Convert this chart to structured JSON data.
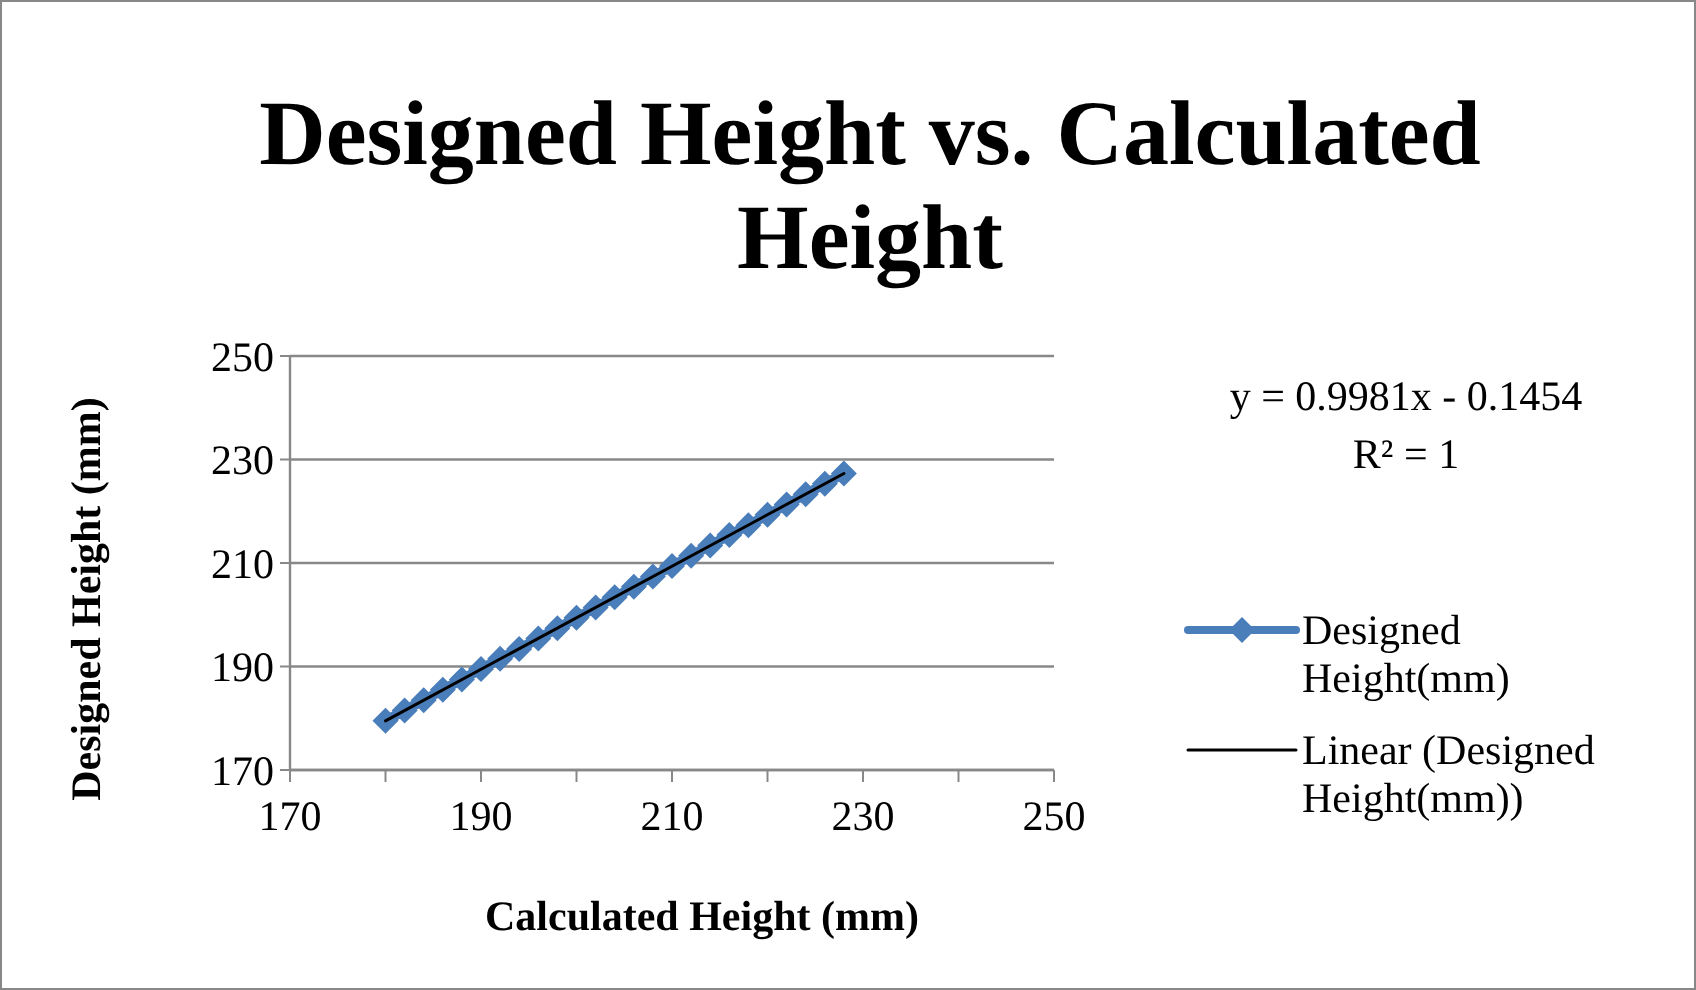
{
  "chart_data": {
    "type": "line",
    "title": "Designed Height vs. Calculated Height",
    "xlabel": "Calculated Height (mm)",
    "ylabel": "Designed Height (mm)",
    "series": [
      {
        "name": "Designed Height(mm)",
        "color": "#4a7ebb",
        "marker": "diamond",
        "x": [
          180,
          182,
          184,
          186,
          188,
          190,
          192,
          194,
          196,
          198,
          200,
          202,
          204,
          206,
          208,
          210,
          212,
          214,
          216,
          218,
          220,
          222,
          224,
          226,
          228
        ],
        "values": [
          179.5,
          181.5,
          183.5,
          185.5,
          187.5,
          189.5,
          191.5,
          193.4,
          195.4,
          197.4,
          199.4,
          201.4,
          203.4,
          205.4,
          207.4,
          209.4,
          211.4,
          213.4,
          215.4,
          217.3,
          219.3,
          221.3,
          223.3,
          225.3,
          227.3
        ]
      },
      {
        "name": "Linear (Designed Height(mm))",
        "type": "line",
        "color": "#000000",
        "marker": "none",
        "x": [
          180,
          228
        ],
        "values": [
          179.5,
          227.3
        ]
      }
    ],
    "annotations": [
      "y = 0.9981x - 0.1454",
      "R² = 1"
    ],
    "xlim": [
      170,
      250
    ],
    "xticks": [
      170,
      190,
      210,
      230,
      250
    ],
    "ylim": [
      170,
      250
    ],
    "yticks": [
      170,
      190,
      210,
      230,
      250
    ],
    "grid": "y",
    "legend": "right"
  }
}
